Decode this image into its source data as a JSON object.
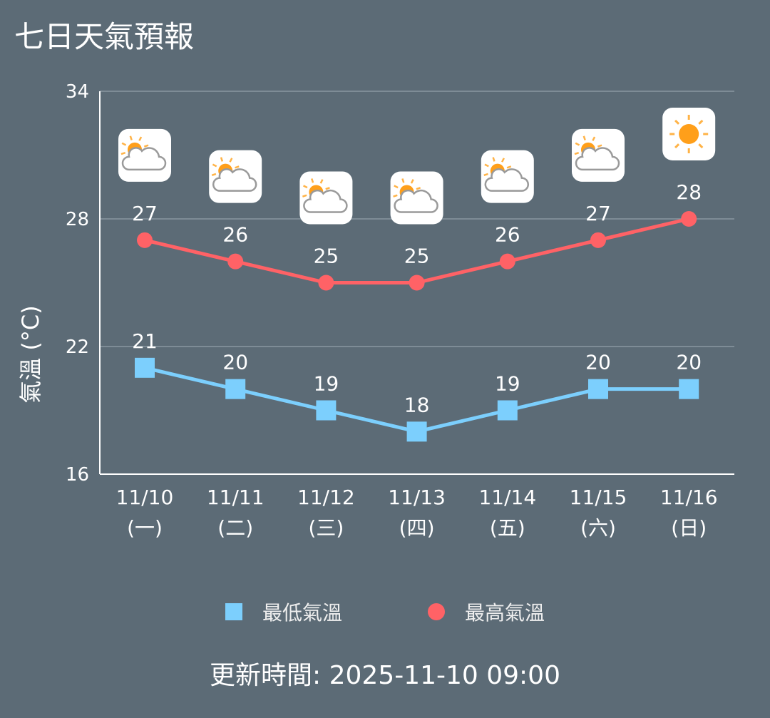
{
  "title": "七日天氣預報",
  "updated": "更新時間: 2025-11-10 09:00",
  "colors": {
    "low": "#7ccffd",
    "high": "#ff6266",
    "grid": "#8a98a1"
  },
  "chart_data": {
    "type": "line",
    "ylabel": "氣溫 (°C)",
    "ylim": [
      16,
      34
    ],
    "yticks": [
      16,
      22,
      28,
      34
    ],
    "categories": [
      [
        "11/10",
        "(一)"
      ],
      [
        "11/11",
        "(二)"
      ],
      [
        "11/12",
        "(三)"
      ],
      [
        "11/13",
        "(四)"
      ],
      [
        "11/14",
        "(五)"
      ],
      [
        "11/15",
        "(六)"
      ],
      [
        "11/16",
        "(日)"
      ]
    ],
    "icons": [
      "partly-cloudy-icon",
      "partly-cloudy-icon",
      "partly-cloudy-icon",
      "partly-cloudy-icon",
      "partly-cloudy-icon",
      "partly-cloudy-icon",
      "sunny-icon"
    ],
    "series": [
      {
        "name": "最低氣溫",
        "values": [
          21,
          20,
          19,
          18,
          19,
          20,
          20
        ]
      },
      {
        "name": "最高氣溫",
        "values": [
          27,
          26,
          25,
          25,
          26,
          27,
          28
        ]
      }
    ],
    "legend": "bottom"
  }
}
